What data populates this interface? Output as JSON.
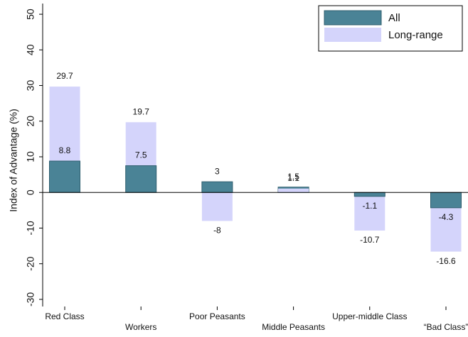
{
  "chart_data": {
    "type": "bar",
    "y_label": "Index of Advantage (%)",
    "categories": [
      "Red Class",
      "Workers",
      "Poor Peasants",
      "Middle Peasants",
      "Upper-middle Class",
      "“Bad Class”"
    ],
    "series": [
      {
        "name": "All",
        "color": "#4a8396",
        "values": [
          8.8,
          7.5,
          3,
          1.5,
          -1.1,
          -4.3
        ]
      },
      {
        "name": "Long-range",
        "color": "#d4d4fb",
        "values": [
          29.7,
          19.7,
          -8,
          1.1,
          -10.7,
          -16.6
        ]
      }
    ],
    "ylim": [
      -32,
      53
    ],
    "yticks": [
      -30,
      -20,
      -10,
      0,
      10,
      20,
      30,
      40,
      50
    ],
    "legend": "top-right"
  }
}
